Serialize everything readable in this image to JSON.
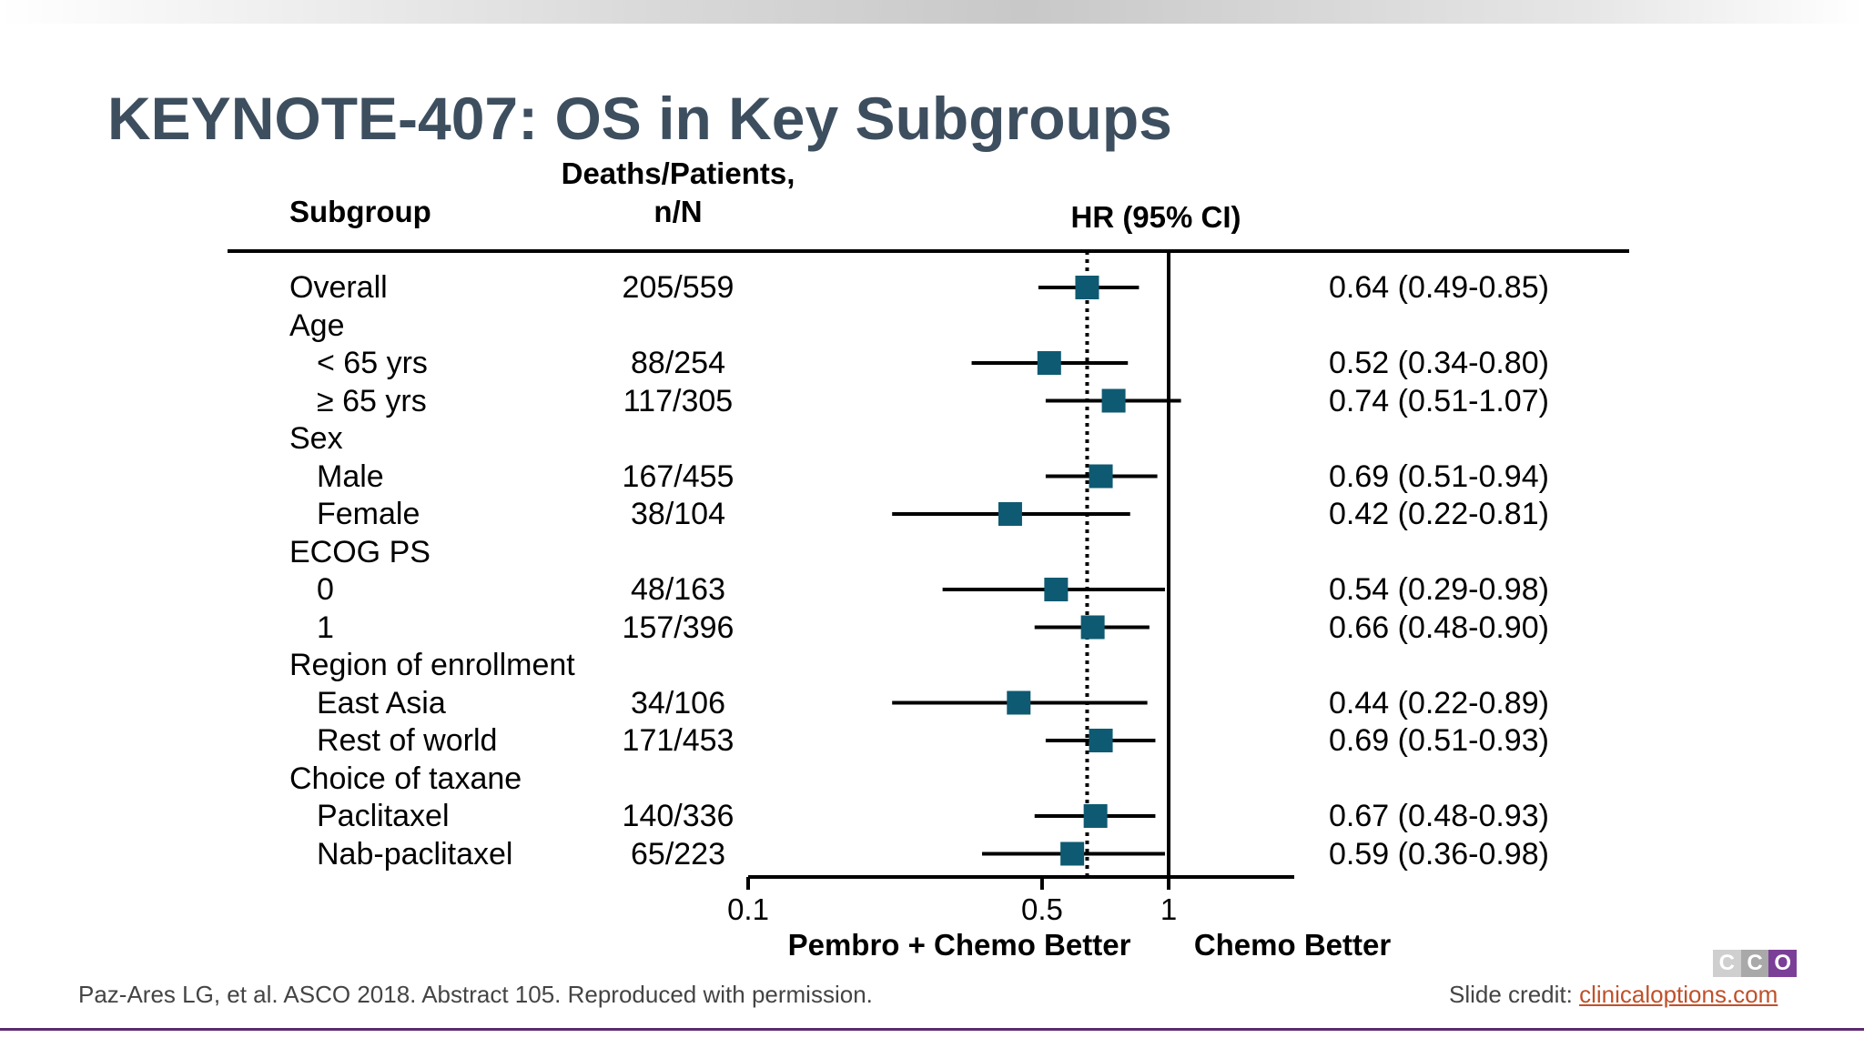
{
  "title": "KEYNOTE-407: OS in Key Subgroups",
  "headers": {
    "subgroup": "Subgroup",
    "deaths_line1": "Deaths/Patients,",
    "deaths_line2": "n/N",
    "hr": "HR (95% CI)"
  },
  "rows": [
    {
      "label": "Overall",
      "indent": false,
      "n": "205/559",
      "hr_text": "0.64 (0.49-0.85)",
      "hr": 0.64,
      "lo": 0.49,
      "hi": 0.85
    },
    {
      "label": "Age",
      "indent": false
    },
    {
      "label": "< 65 yrs",
      "indent": true,
      "n": "88/254",
      "hr_text": "0.52 (0.34-0.80)",
      "hr": 0.52,
      "lo": 0.34,
      "hi": 0.8
    },
    {
      "label": "≥ 65 yrs",
      "indent": true,
      "n": "117/305",
      "hr_text": "0.74 (0.51-1.07)",
      "hr": 0.74,
      "lo": 0.51,
      "hi": 1.07
    },
    {
      "label": "Sex",
      "indent": false
    },
    {
      "label": "Male",
      "indent": true,
      "n": "167/455",
      "hr_text": "0.69 (0.51-0.94)",
      "hr": 0.69,
      "lo": 0.51,
      "hi": 0.94
    },
    {
      "label": "Female",
      "indent": true,
      "n": "38/104",
      "hr_text": "0.42 (0.22-0.81)",
      "hr": 0.42,
      "lo": 0.22,
      "hi": 0.81
    },
    {
      "label": "ECOG PS",
      "indent": false
    },
    {
      "label": "0",
      "indent": true,
      "n": "48/163",
      "hr_text": "0.54 (0.29-0.98)",
      "hr": 0.54,
      "lo": 0.29,
      "hi": 0.98
    },
    {
      "label": "1",
      "indent": true,
      "n": "157/396",
      "hr_text": "0.66 (0.48-0.90)",
      "hr": 0.66,
      "lo": 0.48,
      "hi": 0.9
    },
    {
      "label": "Region of enrollment",
      "indent": false
    },
    {
      "label": "East Asia",
      "indent": true,
      "n": "34/106",
      "hr_text": "0.44 (0.22-0.89)",
      "hr": 0.44,
      "lo": 0.22,
      "hi": 0.89
    },
    {
      "label": "Rest of world",
      "indent": true,
      "n": "171/453",
      "hr_text": "0.69 (0.51-0.93)",
      "hr": 0.69,
      "lo": 0.51,
      "hi": 0.93
    },
    {
      "label": "Choice of taxane",
      "indent": false
    },
    {
      "label": "Paclitaxel",
      "indent": true,
      "n": "140/336",
      "hr_text": "0.67 (0.48-0.93)",
      "hr": 0.67,
      "lo": 0.48,
      "hi": 0.93
    },
    {
      "label": "Nab-paclitaxel",
      "indent": true,
      "n": "65/223",
      "hr_text": "0.59 (0.36-0.98)",
      "hr": 0.59,
      "lo": 0.36,
      "hi": 0.98
    }
  ],
  "chart_data": {
    "type": "forest",
    "x_scale": "log",
    "x_ticks": [
      0.1,
      0.5,
      1
    ],
    "x_tick_labels": [
      "0.1",
      "0.5",
      "1"
    ],
    "reference_line": 1,
    "overall_line": 0.64,
    "left_label": "Pembro + Chemo Better",
    "right_label": "Chemo Better",
    "marker_color": "#0e5a72",
    "categories": [
      "Overall",
      "< 65 yrs",
      "≥ 65 yrs",
      "Male",
      "Female",
      "0",
      "1",
      "East Asia",
      "Rest of world",
      "Paclitaxel",
      "Nab-paclitaxel"
    ],
    "hr": [
      0.64,
      0.52,
      0.74,
      0.69,
      0.42,
      0.54,
      0.66,
      0.44,
      0.69,
      0.67,
      0.59
    ],
    "ci_low": [
      0.49,
      0.34,
      0.51,
      0.51,
      0.22,
      0.29,
      0.48,
      0.22,
      0.51,
      0.48,
      0.36
    ],
    "ci_high": [
      0.85,
      0.8,
      1.07,
      0.94,
      0.81,
      0.98,
      0.9,
      0.89,
      0.93,
      0.93,
      0.98
    ]
  },
  "footer": {
    "citation": "Paz-Ares LG, et al. ASCO 2018. Abstract 105. Reproduced with permission.",
    "credit_prefix": "Slide credit: ",
    "credit_link": "clinicaloptions.com"
  },
  "logo": {
    "letters": [
      "C",
      "C",
      "O"
    ],
    "colors": [
      "#cfcfcf",
      "#a9a9a9",
      "#7b3f98"
    ]
  }
}
